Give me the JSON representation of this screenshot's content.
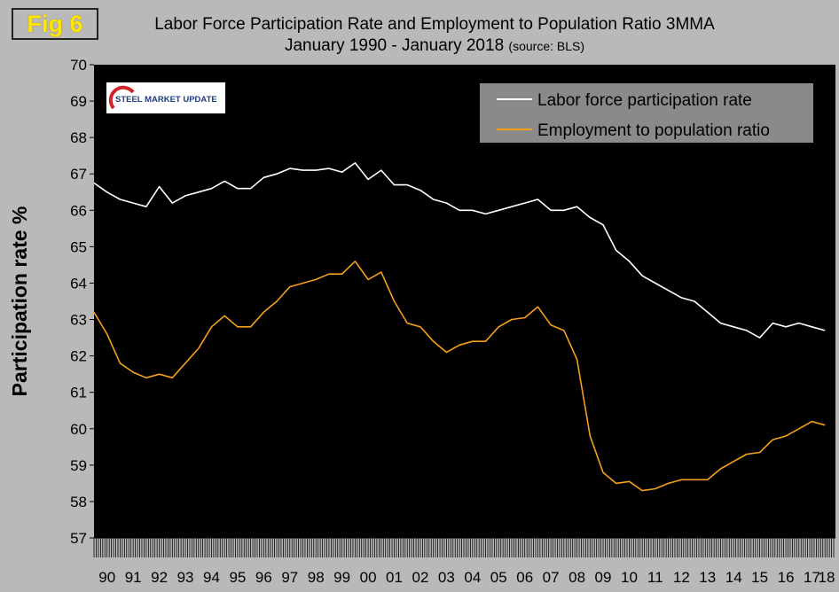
{
  "figure": {
    "badge": "Fig 6",
    "title_line1": "Labor Force Participation Rate and Employment to Population Ratio 3MMA",
    "title_line2": "January 1990 - January 2018",
    "source": "(source: BLS)",
    "logo_text": "STEEL MARKET UPDATE"
  },
  "colors": {
    "plot_bg": "#000000",
    "lfpr": "#ffffff",
    "epop": "#f5a01a",
    "frame": "#b9b9b9"
  },
  "chart_data": {
    "type": "line",
    "title": "Labor Force Participation Rate and Employment to Population Ratio 3MMA",
    "xlabel": "",
    "ylabel": "Participation rate %",
    "ylim": [
      57,
      70
    ],
    "yticks": [
      "57",
      "58",
      "59",
      "60",
      "61",
      "62",
      "63",
      "64",
      "65",
      "66",
      "67",
      "68",
      "69",
      "70"
    ],
    "xlim": [
      1990.0,
      2018.4
    ],
    "xtick_labels": [
      "90",
      "91",
      "92",
      "93",
      "94",
      "95",
      "96",
      "97",
      "98",
      "99",
      "00",
      "01",
      "02",
      "03",
      "04",
      "05",
      "06",
      "07",
      "08",
      "09",
      "10",
      "11",
      "12",
      "13",
      "14",
      "15",
      "16",
      "17",
      "18"
    ],
    "legend_position": "top-right",
    "series": [
      {
        "name": "Labor force participation rate",
        "x": [
          1990.0,
          1990.5,
          1991.0,
          1991.5,
          1992.0,
          1992.5,
          1993.0,
          1993.5,
          1994.0,
          1994.5,
          1995.0,
          1995.5,
          1996.0,
          1996.5,
          1997.0,
          1997.5,
          1998.0,
          1998.5,
          1999.0,
          1999.5,
          2000.0,
          2000.5,
          2001.0,
          2001.5,
          2002.0,
          2002.5,
          2003.0,
          2003.5,
          2004.0,
          2004.5,
          2005.0,
          2005.5,
          2006.0,
          2006.5,
          2007.0,
          2007.5,
          2008.0,
          2008.5,
          2009.0,
          2009.5,
          2010.0,
          2010.5,
          2011.0,
          2011.5,
          2012.0,
          2012.5,
          2013.0,
          2013.5,
          2014.0,
          2014.5,
          2015.0,
          2015.5,
          2016.0,
          2016.5,
          2017.0,
          2017.5,
          2018.0
        ],
        "values": [
          66.75,
          66.5,
          66.3,
          66.2,
          66.1,
          66.65,
          66.2,
          66.4,
          66.5,
          66.6,
          66.8,
          66.6,
          66.6,
          66.9,
          67.0,
          67.15,
          67.1,
          67.1,
          67.15,
          67.05,
          67.3,
          66.85,
          67.1,
          66.7,
          66.7,
          66.55,
          66.3,
          66.2,
          66.0,
          66.0,
          65.9,
          66.0,
          66.1,
          66.2,
          66.3,
          66.0,
          66.0,
          66.1,
          65.8,
          65.6,
          64.9,
          64.6,
          64.2,
          64.0,
          63.8,
          63.6,
          63.5,
          63.2,
          62.9,
          62.8,
          62.7,
          62.5,
          62.9,
          62.8,
          62.9,
          62.8,
          62.7
        ]
      },
      {
        "name": "Employment to population ratio",
        "x": [
          1990.0,
          1990.5,
          1991.0,
          1991.5,
          1992.0,
          1992.5,
          1993.0,
          1993.5,
          1994.0,
          1994.5,
          1995.0,
          1995.5,
          1996.0,
          1996.5,
          1997.0,
          1997.5,
          1998.0,
          1998.5,
          1999.0,
          1999.5,
          2000.0,
          2000.5,
          2001.0,
          2001.5,
          2002.0,
          2002.5,
          2003.0,
          2003.5,
          2004.0,
          2004.5,
          2005.0,
          2005.5,
          2006.0,
          2006.5,
          2007.0,
          2007.5,
          2008.0,
          2008.5,
          2009.0,
          2009.5,
          2010.0,
          2010.5,
          2011.0,
          2011.5,
          2012.0,
          2012.5,
          2013.0,
          2013.5,
          2014.0,
          2014.5,
          2015.0,
          2015.5,
          2016.0,
          2016.5,
          2017.0,
          2017.5,
          2018.0
        ],
        "values": [
          63.2,
          62.6,
          61.8,
          61.55,
          61.4,
          61.5,
          61.4,
          61.8,
          62.2,
          62.8,
          63.1,
          62.8,
          62.8,
          63.2,
          63.5,
          63.9,
          64.0,
          64.1,
          64.25,
          64.25,
          64.6,
          64.1,
          64.3,
          63.5,
          62.9,
          62.8,
          62.4,
          62.1,
          62.3,
          62.4,
          62.4,
          62.8,
          63.0,
          63.05,
          63.35,
          62.85,
          62.7,
          61.9,
          59.8,
          58.8,
          58.5,
          58.55,
          58.3,
          58.35,
          58.5,
          58.6,
          58.6,
          58.6,
          58.9,
          59.1,
          59.3,
          59.35,
          59.7,
          59.8,
          60.0,
          60.2,
          60.1
        ]
      }
    ]
  }
}
